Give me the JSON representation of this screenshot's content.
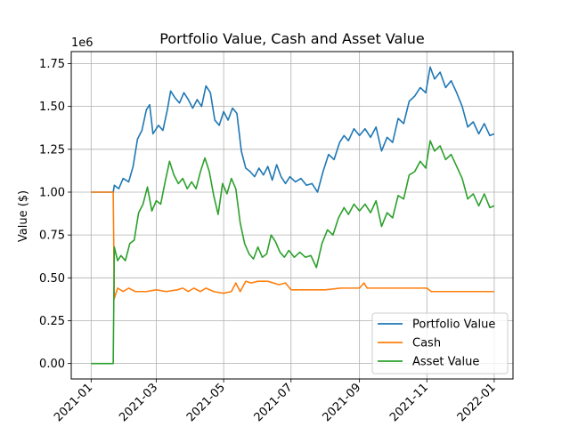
{
  "chart_data": {
    "type": "line",
    "title": "Portfolio Value, Cash and Asset Value",
    "xlabel": "",
    "ylabel": "Value ($)",
    "y_offset_text": "1e6",
    "ylim": [
      -0.09,
      1.82
    ],
    "xlim": [
      "2020-12-14",
      "2022-01-18"
    ],
    "y_ticks": [
      {
        "value": 0.0,
        "label": "0.00"
      },
      {
        "value": 0.25,
        "label": "0.25"
      },
      {
        "value": 0.5,
        "label": "0.50"
      },
      {
        "value": 0.75,
        "label": "0.75"
      },
      {
        "value": 1.0,
        "label": "1.00"
      },
      {
        "value": 1.25,
        "label": "1.25"
      },
      {
        "value": 1.5,
        "label": "1.50"
      },
      {
        "value": 1.75,
        "label": "1.75"
      }
    ],
    "x_ticks": [
      {
        "value": "2021-01-01",
        "label": "2021-01"
      },
      {
        "value": "2021-03-01",
        "label": "2021-03"
      },
      {
        "value": "2021-05-01",
        "label": "2021-05"
      },
      {
        "value": "2021-07-01",
        "label": "2021-07"
      },
      {
        "value": "2021-09-01",
        "label": "2021-09"
      },
      {
        "value": "2021-11-01",
        "label": "2021-11"
      },
      {
        "value": "2022-01-01",
        "label": "2022-01"
      }
    ],
    "grid": true,
    "legend_position": "lower-right",
    "series": [
      {
        "name": "Portfolio Value",
        "color": "#1f77b4",
        "points": [
          [
            "2021-01-01",
            1.0
          ],
          [
            "2021-01-21",
            1.0
          ],
          [
            "2021-01-22",
            1.04
          ],
          [
            "2021-01-26",
            1.02
          ],
          [
            "2021-01-30",
            1.08
          ],
          [
            "2021-02-04",
            1.06
          ],
          [
            "2021-02-08",
            1.15
          ],
          [
            "2021-02-12",
            1.31
          ],
          [
            "2021-02-16",
            1.36
          ],
          [
            "2021-02-20",
            1.48
          ],
          [
            "2021-02-23",
            1.51
          ],
          [
            "2021-02-26",
            1.34
          ],
          [
            "2021-03-03",
            1.39
          ],
          [
            "2021-03-07",
            1.36
          ],
          [
            "2021-03-11",
            1.48
          ],
          [
            "2021-03-14",
            1.59
          ],
          [
            "2021-03-18",
            1.55
          ],
          [
            "2021-03-22",
            1.52
          ],
          [
            "2021-03-26",
            1.58
          ],
          [
            "2021-03-30",
            1.54
          ],
          [
            "2021-04-03",
            1.49
          ],
          [
            "2021-04-07",
            1.54
          ],
          [
            "2021-04-11",
            1.5
          ],
          [
            "2021-04-15",
            1.62
          ],
          [
            "2021-04-19",
            1.58
          ],
          [
            "2021-04-23",
            1.42
          ],
          [
            "2021-04-27",
            1.39
          ],
          [
            "2021-05-01",
            1.47
          ],
          [
            "2021-05-05",
            1.42
          ],
          [
            "2021-05-09",
            1.49
          ],
          [
            "2021-05-13",
            1.46
          ],
          [
            "2021-05-17",
            1.24
          ],
          [
            "2021-05-21",
            1.14
          ],
          [
            "2021-05-25",
            1.12
          ],
          [
            "2021-05-29",
            1.09
          ],
          [
            "2021-06-02",
            1.14
          ],
          [
            "2021-06-06",
            1.1
          ],
          [
            "2021-06-10",
            1.15
          ],
          [
            "2021-06-14",
            1.07
          ],
          [
            "2021-06-18",
            1.16
          ],
          [
            "2021-06-22",
            1.09
          ],
          [
            "2021-06-26",
            1.05
          ],
          [
            "2021-06-30",
            1.09
          ],
          [
            "2021-07-05",
            1.06
          ],
          [
            "2021-07-10",
            1.08
          ],
          [
            "2021-07-15",
            1.04
          ],
          [
            "2021-07-20",
            1.05
          ],
          [
            "2021-07-25",
            1.0
          ],
          [
            "2021-07-30",
            1.12
          ],
          [
            "2021-08-04",
            1.22
          ],
          [
            "2021-08-09",
            1.19
          ],
          [
            "2021-08-14",
            1.29
          ],
          [
            "2021-08-18",
            1.33
          ],
          [
            "2021-08-22",
            1.3
          ],
          [
            "2021-08-27",
            1.37
          ],
          [
            "2021-09-01",
            1.33
          ],
          [
            "2021-09-06",
            1.37
          ],
          [
            "2021-09-11",
            1.32
          ],
          [
            "2021-09-16",
            1.38
          ],
          [
            "2021-09-21",
            1.24
          ],
          [
            "2021-09-26",
            1.32
          ],
          [
            "2021-10-01",
            1.29
          ],
          [
            "2021-10-06",
            1.43
          ],
          [
            "2021-10-11",
            1.4
          ],
          [
            "2021-10-16",
            1.53
          ],
          [
            "2021-10-21",
            1.56
          ],
          [
            "2021-10-26",
            1.61
          ],
          [
            "2021-10-31",
            1.58
          ],
          [
            "2021-11-04",
            1.73
          ],
          [
            "2021-11-08",
            1.66
          ],
          [
            "2021-11-13",
            1.7
          ],
          [
            "2021-11-18",
            1.61
          ],
          [
            "2021-11-23",
            1.65
          ],
          [
            "2021-11-28",
            1.58
          ],
          [
            "2021-12-03",
            1.5
          ],
          [
            "2021-12-08",
            1.38
          ],
          [
            "2021-12-13",
            1.41
          ],
          [
            "2021-12-18",
            1.34
          ],
          [
            "2021-12-23",
            1.4
          ],
          [
            "2021-12-28",
            1.33
          ],
          [
            "2022-01-01",
            1.34
          ]
        ]
      },
      {
        "name": "Cash",
        "color": "#ff7f0e",
        "points": [
          [
            "2021-01-01",
            1.0
          ],
          [
            "2021-01-21",
            1.0
          ],
          [
            "2021-01-22",
            0.38
          ],
          [
            "2021-01-25",
            0.44
          ],
          [
            "2021-01-30",
            0.42
          ],
          [
            "2021-02-04",
            0.44
          ],
          [
            "2021-02-10",
            0.42
          ],
          [
            "2021-02-20",
            0.42
          ],
          [
            "2021-03-01",
            0.43
          ],
          [
            "2021-03-10",
            0.42
          ],
          [
            "2021-03-20",
            0.43
          ],
          [
            "2021-03-25",
            0.44
          ],
          [
            "2021-03-30",
            0.42
          ],
          [
            "2021-04-04",
            0.44
          ],
          [
            "2021-04-10",
            0.42
          ],
          [
            "2021-04-15",
            0.44
          ],
          [
            "2021-04-22",
            0.42
          ],
          [
            "2021-05-01",
            0.41
          ],
          [
            "2021-05-08",
            0.42
          ],
          [
            "2021-05-12",
            0.47
          ],
          [
            "2021-05-16",
            0.42
          ],
          [
            "2021-05-21",
            0.48
          ],
          [
            "2021-05-26",
            0.47
          ],
          [
            "2021-06-01",
            0.48
          ],
          [
            "2021-06-10",
            0.48
          ],
          [
            "2021-06-20",
            0.46
          ],
          [
            "2021-06-26",
            0.47
          ],
          [
            "2021-07-01",
            0.43
          ],
          [
            "2021-07-15",
            0.43
          ],
          [
            "2021-08-01",
            0.43
          ],
          [
            "2021-08-15",
            0.44
          ],
          [
            "2021-09-01",
            0.44
          ],
          [
            "2021-09-05",
            0.47
          ],
          [
            "2021-09-08",
            0.44
          ],
          [
            "2021-10-01",
            0.44
          ],
          [
            "2021-11-01",
            0.44
          ],
          [
            "2021-11-05",
            0.42
          ],
          [
            "2021-12-01",
            0.42
          ],
          [
            "2022-01-01",
            0.42
          ]
        ]
      },
      {
        "name": "Asset Value",
        "color": "#2ca02c",
        "points": [
          [
            "2021-01-01",
            0.0
          ],
          [
            "2021-01-21",
            0.0
          ],
          [
            "2021-01-22",
            0.68
          ],
          [
            "2021-01-25",
            0.6
          ],
          [
            "2021-01-28",
            0.63
          ],
          [
            "2021-02-01",
            0.6
          ],
          [
            "2021-02-05",
            0.7
          ],
          [
            "2021-02-09",
            0.72
          ],
          [
            "2021-02-13",
            0.88
          ],
          [
            "2021-02-17",
            0.93
          ],
          [
            "2021-02-21",
            1.03
          ],
          [
            "2021-02-25",
            0.89
          ],
          [
            "2021-03-01",
            0.95
          ],
          [
            "2021-03-05",
            0.93
          ],
          [
            "2021-03-09",
            1.06
          ],
          [
            "2021-03-13",
            1.18
          ],
          [
            "2021-03-17",
            1.1
          ],
          [
            "2021-03-21",
            1.05
          ],
          [
            "2021-03-25",
            1.08
          ],
          [
            "2021-03-29",
            1.02
          ],
          [
            "2021-04-02",
            1.06
          ],
          [
            "2021-04-06",
            1.02
          ],
          [
            "2021-04-10",
            1.12
          ],
          [
            "2021-04-14",
            1.2
          ],
          [
            "2021-04-18",
            1.12
          ],
          [
            "2021-04-22",
            0.98
          ],
          [
            "2021-04-26",
            0.87
          ],
          [
            "2021-04-30",
            1.05
          ],
          [
            "2021-05-04",
            0.99
          ],
          [
            "2021-05-08",
            1.08
          ],
          [
            "2021-05-12",
            1.02
          ],
          [
            "2021-05-16",
            0.82
          ],
          [
            "2021-05-20",
            0.7
          ],
          [
            "2021-05-24",
            0.64
          ],
          [
            "2021-05-28",
            0.61
          ],
          [
            "2021-06-01",
            0.68
          ],
          [
            "2021-06-05",
            0.62
          ],
          [
            "2021-06-09",
            0.64
          ],
          [
            "2021-06-13",
            0.75
          ],
          [
            "2021-06-17",
            0.71
          ],
          [
            "2021-06-21",
            0.65
          ],
          [
            "2021-06-25",
            0.62
          ],
          [
            "2021-06-29",
            0.66
          ],
          [
            "2021-07-04",
            0.62
          ],
          [
            "2021-07-09",
            0.65
          ],
          [
            "2021-07-14",
            0.62
          ],
          [
            "2021-07-19",
            0.63
          ],
          [
            "2021-07-24",
            0.56
          ],
          [
            "2021-07-29",
            0.7
          ],
          [
            "2021-08-03",
            0.78
          ],
          [
            "2021-08-08",
            0.75
          ],
          [
            "2021-08-13",
            0.85
          ],
          [
            "2021-08-18",
            0.91
          ],
          [
            "2021-08-22",
            0.87
          ],
          [
            "2021-08-27",
            0.93
          ],
          [
            "2021-09-01",
            0.89
          ],
          [
            "2021-09-06",
            0.93
          ],
          [
            "2021-09-11",
            0.88
          ],
          [
            "2021-09-16",
            0.95
          ],
          [
            "2021-09-21",
            0.8
          ],
          [
            "2021-09-26",
            0.88
          ],
          [
            "2021-10-01",
            0.85
          ],
          [
            "2021-10-06",
            0.98
          ],
          [
            "2021-10-11",
            0.96
          ],
          [
            "2021-10-16",
            1.1
          ],
          [
            "2021-10-21",
            1.12
          ],
          [
            "2021-10-26",
            1.18
          ],
          [
            "2021-10-31",
            1.14
          ],
          [
            "2021-11-04",
            1.3
          ],
          [
            "2021-11-08",
            1.24
          ],
          [
            "2021-11-13",
            1.27
          ],
          [
            "2021-11-18",
            1.19
          ],
          [
            "2021-11-23",
            1.22
          ],
          [
            "2021-11-28",
            1.15
          ],
          [
            "2021-12-03",
            1.08
          ],
          [
            "2021-12-08",
            0.96
          ],
          [
            "2021-12-13",
            0.99
          ],
          [
            "2021-12-18",
            0.92
          ],
          [
            "2021-12-23",
            0.99
          ],
          [
            "2021-12-28",
            0.91
          ],
          [
            "2022-01-01",
            0.92
          ]
        ]
      }
    ]
  }
}
